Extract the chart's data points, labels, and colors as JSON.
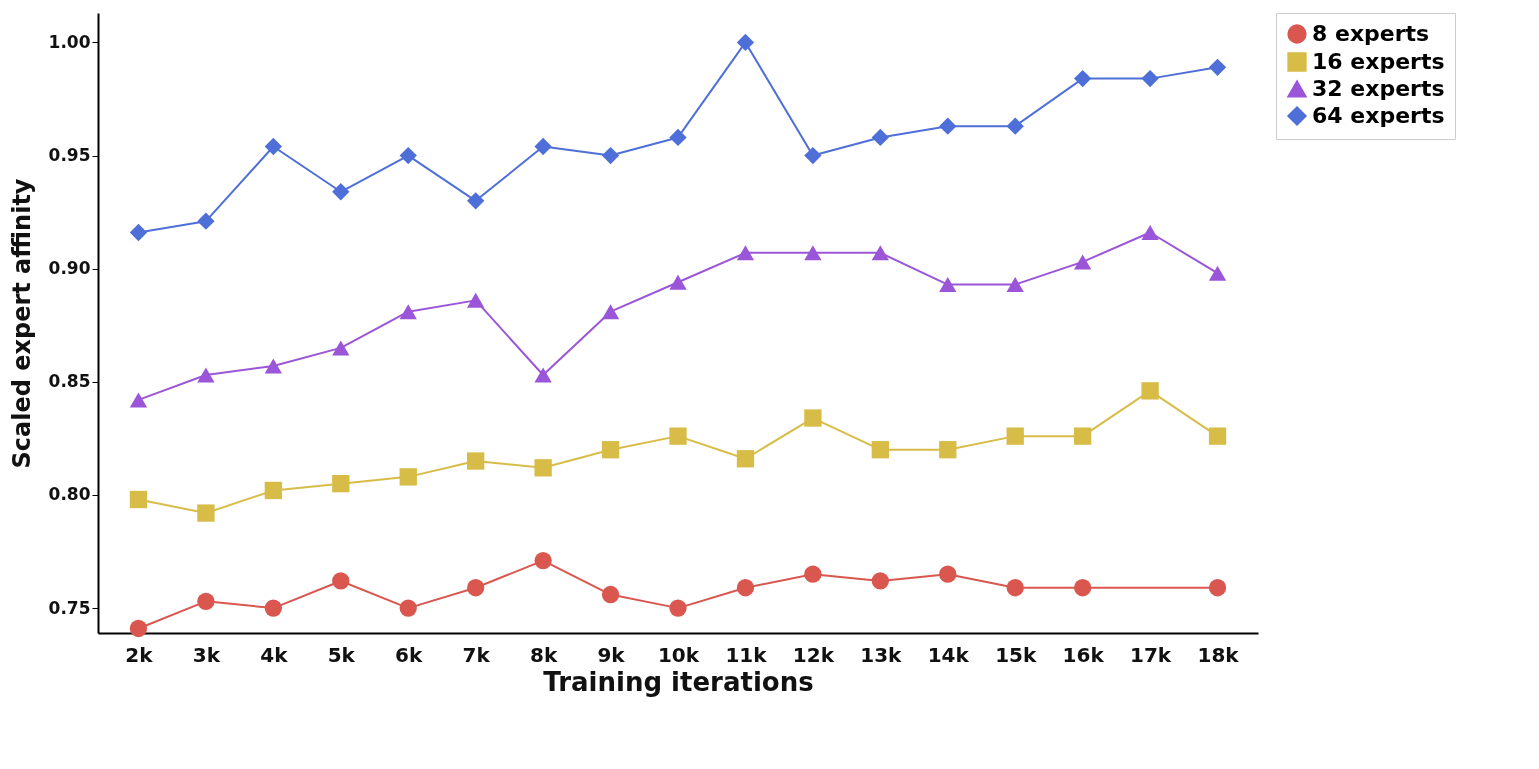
{
  "chart_data": {
    "type": "line",
    "xlabel": "Training iterations",
    "ylabel": "Scaled expert affinity",
    "categories": [
      "2k",
      "3k",
      "4k",
      "5k",
      "6k",
      "7k",
      "8k",
      "9k",
      "10k",
      "11k",
      "12k",
      "13k",
      "14k",
      "15k",
      "16k",
      "17k",
      "18k"
    ],
    "series": [
      {
        "name": "8 experts",
        "color": "#d9574f",
        "marker": "circle",
        "values": [
          0.741,
          0.753,
          0.75,
          0.762,
          0.75,
          0.759,
          0.771,
          0.756,
          0.75,
          0.759,
          0.765,
          0.762,
          0.765,
          0.759,
          0.759,
          null,
          0.759
        ]
      },
      {
        "name": "16 experts",
        "color": "#d8bc48",
        "marker": "square",
        "values": [
          0.798,
          0.792,
          0.802,
          0.805,
          0.808,
          0.815,
          0.812,
          0.82,
          0.826,
          0.816,
          0.834,
          0.82,
          0.82,
          0.826,
          0.826,
          0.846,
          0.826
        ]
      },
      {
        "name": "32 experts",
        "color": "#9b55d8",
        "marker": "triangle",
        "values": [
          0.842,
          0.853,
          0.857,
          0.865,
          0.881,
          0.886,
          0.853,
          0.881,
          0.894,
          0.907,
          0.907,
          0.907,
          0.893,
          0.893,
          0.903,
          0.916,
          0.898
        ]
      },
      {
        "name": "64 experts",
        "color": "#4f6fd8",
        "marker": "diamond",
        "values": [
          0.916,
          0.921,
          0.954,
          0.934,
          0.95,
          0.93,
          0.954,
          0.95,
          0.958,
          1.0,
          0.95,
          0.958,
          0.963,
          0.963,
          0.984,
          0.984,
          0.989
        ]
      }
    ],
    "ylim": [
      0.739,
      1.013
    ],
    "yticks": [
      {
        "value": 0.75,
        "label": "0.75"
      },
      {
        "value": 0.8,
        "label": "0.80"
      },
      {
        "value": 0.85,
        "label": "0.85"
      },
      {
        "value": 0.9,
        "label": "0.90"
      },
      {
        "value": 0.95,
        "label": "0.95"
      },
      {
        "value": 1.0,
        "label": "1.00"
      }
    ],
    "grid": false,
    "legend": "right",
    "line_style": "solid"
  }
}
